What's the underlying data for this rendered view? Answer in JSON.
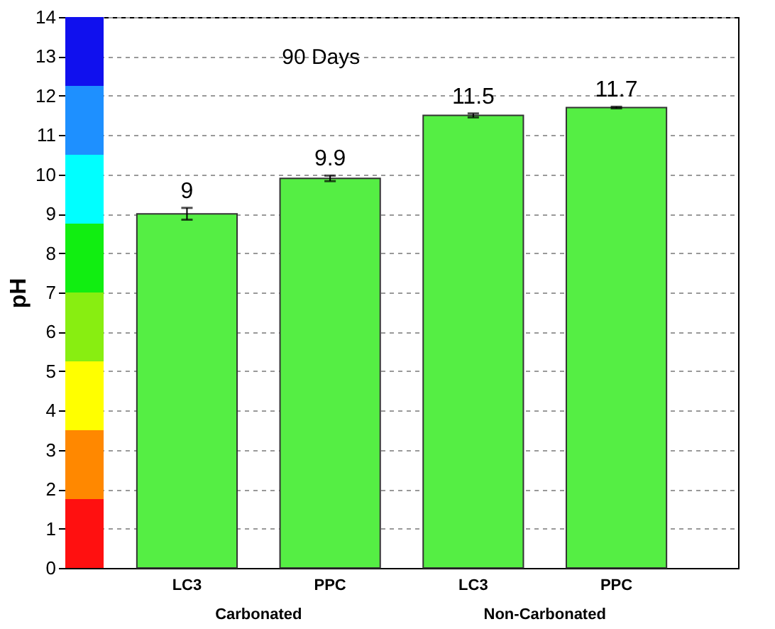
{
  "chart_data": {
    "type": "bar",
    "ylabel": "pH",
    "categories": [
      "LC3",
      "PPC",
      "LC3",
      "PPC"
    ],
    "values": [
      9,
      9.9,
      11.5,
      11.7
    ],
    "errors": [
      0.15,
      0.07,
      0.05,
      0.02
    ],
    "color": "#55ee44",
    "data_labels": true,
    "ylim": [
      0,
      14
    ],
    "yticks": [
      0,
      1,
      2,
      3,
      4,
      5,
      6,
      7,
      8,
      9,
      10,
      11,
      12,
      13,
      14
    ],
    "grid": "y",
    "bands": [
      {
        "axis": "y",
        "from": 0,
        "to": 1.75,
        "color": "#ff1010"
      },
      {
        "axis": "y",
        "from": 1.75,
        "to": 3.5,
        "color": "#ff8800"
      },
      {
        "axis": "y",
        "from": 3.5,
        "to": 5.25,
        "color": "#ffff00"
      },
      {
        "axis": "y",
        "from": 5.25,
        "to": 7,
        "color": "#88ee11"
      },
      {
        "axis": "y",
        "from": 7,
        "to": 8.75,
        "color": "#11ee11"
      },
      {
        "axis": "y",
        "from": 8.75,
        "to": 10.5,
        "color": "#00ffff"
      },
      {
        "axis": "y",
        "from": 10.5,
        "to": 12.25,
        "color": "#1e90ff"
      },
      {
        "axis": "y",
        "from": 12.25,
        "to": 14,
        "color": "#1010ee"
      }
    ],
    "annotations": [
      "90 Days",
      "Carbonated",
      "Non-Carbonated"
    ]
  }
}
